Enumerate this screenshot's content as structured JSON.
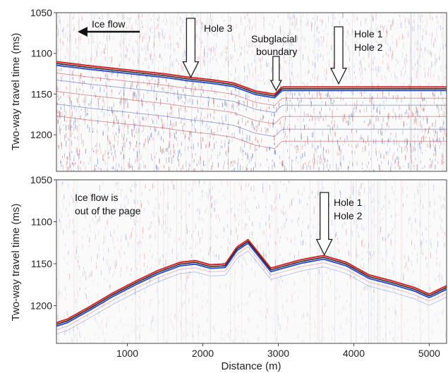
{
  "chart_data": [
    {
      "type": "heatmap",
      "xlabel": "",
      "ylabel": "Two-way travel time (ms)",
      "xlim": [
        60,
        5230
      ],
      "ylim": [
        1050,
        1245
      ],
      "y_ticks": [
        1050,
        1100,
        1150,
        1200
      ],
      "x_ticks": [
        1000,
        2000,
        3000,
        4000,
        5000
      ],
      "reflector": {
        "x": [
          60,
          500,
          1000,
          1500,
          1800,
          2100,
          2400,
          2700,
          2950,
          3050,
          3500,
          4000,
          4500,
          5230
        ],
        "y": [
          1112,
          1117,
          1122,
          1127,
          1131,
          1134,
          1138,
          1148,
          1152,
          1143,
          1143,
          1143,
          1143,
          1143
        ]
      },
      "annotations": {
        "ice_flow": "Ice flow",
        "hole3": "Hole 3",
        "subglacial_line1": "Subglacial",
        "subglacial_line2": "boundary",
        "hole1": "Hole 1",
        "hole2": "Hole 2"
      },
      "arrows": [
        {
          "label": "Hole 3",
          "x": 1840,
          "y_tip": 1132
        },
        {
          "label": "Subglacial boundary",
          "x": 2970,
          "y_tip": 1148
        },
        {
          "label": "Hole 1 / Hole 2",
          "x": 3800,
          "y_tip": 1140
        }
      ]
    },
    {
      "type": "heatmap",
      "xlabel": "Distance (m)",
      "ylabel": "Two-way travel time (ms)",
      "xlim": [
        60,
        5230
      ],
      "ylim": [
        1050,
        1245
      ],
      "y_ticks": [
        1050,
        1100,
        1150,
        1200
      ],
      "x_ticks": [
        1000,
        2000,
        3000,
        4000,
        5000
      ],
      "reflector": {
        "x": [
          60,
          200,
          500,
          800,
          1100,
          1400,
          1700,
          1900,
          2100,
          2300,
          2450,
          2600,
          2750,
          2900,
          3100,
          3300,
          3600,
          3900,
          4200,
          4500,
          4800,
          5000,
          5230
        ],
        "y": [
          1222,
          1218,
          1203,
          1187,
          1173,
          1160,
          1150,
          1148,
          1153,
          1152,
          1132,
          1123,
          1140,
          1157,
          1152,
          1147,
          1142,
          1150,
          1165,
          1172,
          1180,
          1188,
          1178
        ]
      },
      "annotations": {
        "ice_flow_line1": "Ice flow is",
        "ice_flow_line2": "out of the page",
        "hole1": "Hole 1",
        "hole2": "Hole 2"
      },
      "arrows": [
        {
          "label": "Hole 1 / Hole 2",
          "x": 3610,
          "y_tip": 1142
        }
      ]
    }
  ]
}
